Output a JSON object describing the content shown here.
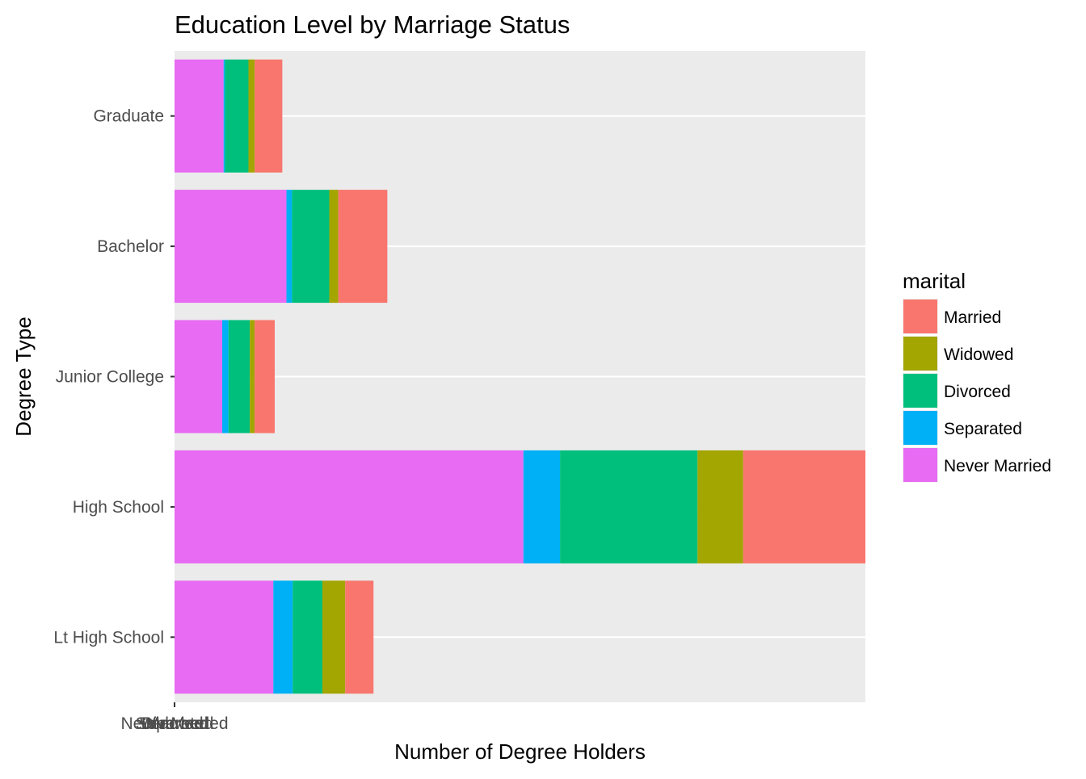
{
  "chart_data": {
    "type": "bar",
    "orientation": "horizontal",
    "stacked": true,
    "title": "Education Level by Marriage Status",
    "xlabel": "Number of Degree Holders",
    "ylabel": "Degree Type",
    "categories": [
      "Lt High School",
      "High School",
      "Junior College",
      "Bachelor",
      "Graduate"
    ],
    "x_tick_labels": [
      "Never Married",
      "Separated",
      "Divorced",
      "Widowed",
      "Married"
    ],
    "xlim": [
      0,
      1000
    ],
    "grid": true,
    "legend": {
      "title": "marital",
      "position": "right",
      "entries": [
        "Married",
        "Widowed",
        "Divorced",
        "Separated",
        "Never Married"
      ]
    },
    "colors": {
      "Married": "#F8766D",
      "Widowed": "#A3A500",
      "Divorced": "#00BF7D",
      "Separated": "#00B0F6",
      "Never Married": "#E76BF3"
    },
    "series": [
      {
        "name": "Never Married",
        "values": [
          143,
          505,
          69,
          162,
          71
        ]
      },
      {
        "name": "Separated",
        "values": [
          28,
          53,
          9,
          8,
          2
        ]
      },
      {
        "name": "Divorced",
        "values": [
          43,
          199,
          31,
          54,
          34
        ]
      },
      {
        "name": "Widowed",
        "values": [
          33,
          66,
          7,
          13,
          9
        ]
      },
      {
        "name": "Married",
        "values": [
          41,
          177,
          29,
          71,
          40
        ]
      }
    ]
  }
}
